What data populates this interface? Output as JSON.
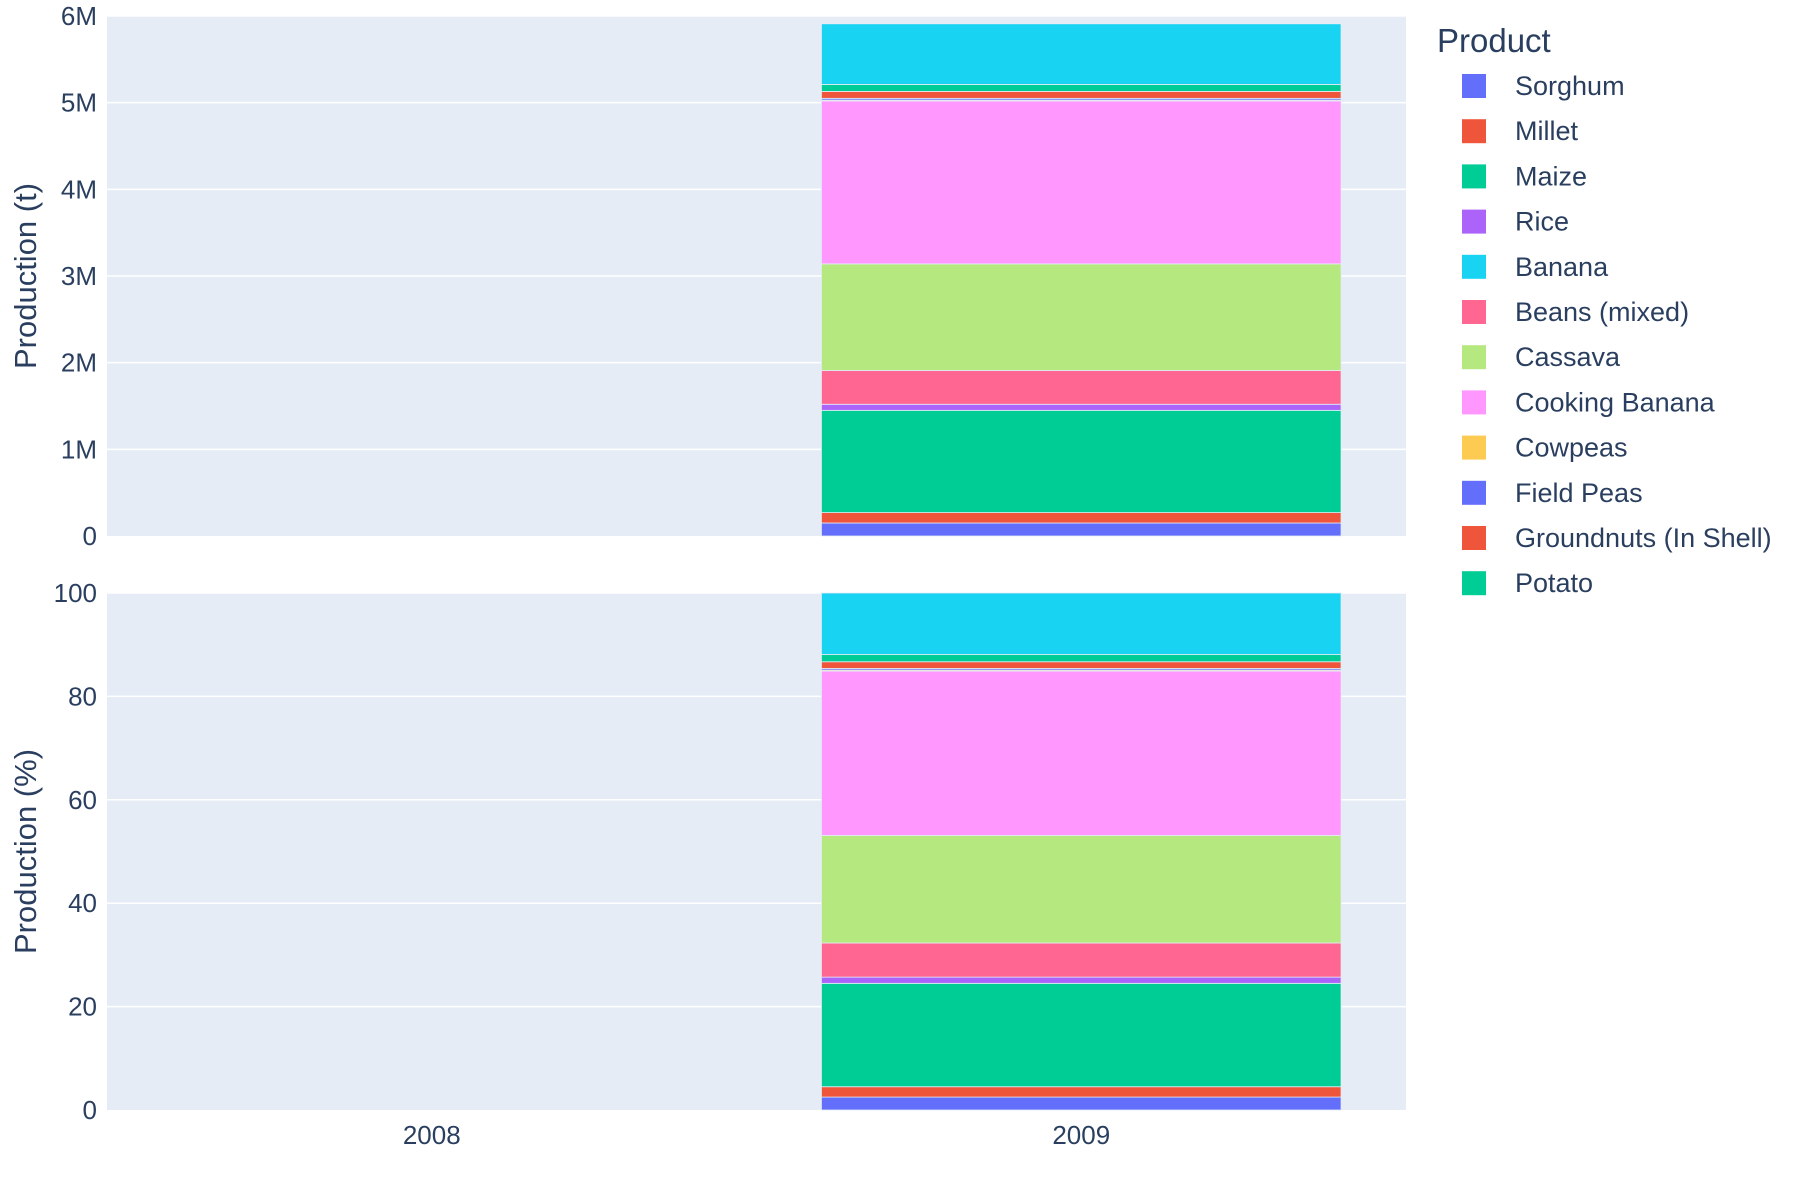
{
  "chart_data": [
    {
      "type": "bar",
      "stacked": true,
      "panel": "top",
      "ylabel": "Production (t)",
      "ylim": [
        0,
        6000000
      ],
      "yticks": [
        0,
        1000000,
        2000000,
        3000000,
        4000000,
        5000000,
        6000000
      ],
      "ytick_labels": [
        "0",
        "1M",
        "2M",
        "3M",
        "4M",
        "5M",
        "6M"
      ],
      "categories": [
        "2008",
        "2009"
      ],
      "grid": true,
      "series": [
        {
          "name": "Sorghum",
          "color": "#636efa",
          "values": [
            0,
            150000
          ]
        },
        {
          "name": "Millet",
          "color": "#EF553B",
          "values": [
            0,
            120000
          ]
        },
        {
          "name": "Maize",
          "color": "#00cc96",
          "values": [
            0,
            1180000
          ]
        },
        {
          "name": "Rice",
          "color": "#ab63fa",
          "values": [
            0,
            70000
          ]
        },
        {
          "name": "Banana",
          "color": "#19d3f3",
          "values": [
            0,
            0
          ]
        },
        {
          "name": "Beans (mixed)",
          "color": "#FF6692",
          "values": [
            0,
            390000
          ]
        },
        {
          "name": "Cassava",
          "color": "#B6E880",
          "values": [
            0,
            1230000
          ]
        },
        {
          "name": "Cooking Banana",
          "color": "#FF97FF",
          "values": [
            0,
            1880000
          ]
        },
        {
          "name": "Cowpeas",
          "color": "#FECB52",
          "values": [
            0,
            10000
          ]
        },
        {
          "name": "Field Peas",
          "color": "#636efa",
          "values": [
            0,
            20000
          ]
        },
        {
          "name": "Groundnuts (In Shell)",
          "color": "#EF553B",
          "values": [
            0,
            80000
          ]
        },
        {
          "name": "Potato",
          "color": "#00cc96",
          "values": [
            0,
            80000
          ]
        },
        {
          "name": "",
          "color": "#19d3f3",
          "values": [
            0,
            700000
          ]
        }
      ]
    },
    {
      "type": "bar",
      "stacked": true,
      "panel": "bottom",
      "ylabel": "Production (%)",
      "ylim": [
        0,
        100
      ],
      "yticks": [
        0,
        20,
        40,
        60,
        80,
        100
      ],
      "ytick_labels": [
        "0",
        "20",
        "40",
        "60",
        "80",
        "100"
      ],
      "categories": [
        "2008",
        "2009"
      ],
      "grid": true,
      "series": [
        {
          "name": "Sorghum",
          "color": "#636efa",
          "values": [
            0,
            2.5
          ]
        },
        {
          "name": "Millet",
          "color": "#EF553B",
          "values": [
            0,
            2.0
          ]
        },
        {
          "name": "Maize",
          "color": "#00cc96",
          "values": [
            0,
            20.0
          ]
        },
        {
          "name": "Rice",
          "color": "#ab63fa",
          "values": [
            0,
            1.2
          ]
        },
        {
          "name": "Banana",
          "color": "#19d3f3",
          "values": [
            0,
            0
          ]
        },
        {
          "name": "Beans (mixed)",
          "color": "#FF6692",
          "values": [
            0,
            6.6
          ]
        },
        {
          "name": "Cassava",
          "color": "#B6E880",
          "values": [
            0,
            20.8
          ]
        },
        {
          "name": "Cooking Banana",
          "color": "#FF97FF",
          "values": [
            0,
            31.8
          ]
        },
        {
          "name": "Cowpeas",
          "color": "#FECB52",
          "values": [
            0,
            0.2
          ]
        },
        {
          "name": "Field Peas",
          "color": "#636efa",
          "values": [
            0,
            0.3
          ]
        },
        {
          "name": "Groundnuts (In Shell)",
          "color": "#EF553B",
          "values": [
            0,
            1.3
          ]
        },
        {
          "name": "Potato",
          "color": "#00cc96",
          "values": [
            0,
            1.4
          ]
        },
        {
          "name": "",
          "color": "#19d3f3",
          "values": [
            0,
            11.9
          ]
        }
      ]
    }
  ],
  "legend": {
    "title": "Product",
    "placement": "right",
    "items": [
      {
        "label": "Sorghum",
        "color": "#636efa"
      },
      {
        "label": "Millet",
        "color": "#EF553B"
      },
      {
        "label": "Maize",
        "color": "#00cc96"
      },
      {
        "label": "Rice",
        "color": "#ab63fa"
      },
      {
        "label": "Banana",
        "color": "#19d3f3"
      },
      {
        "label": "Beans (mixed)",
        "color": "#FF6692"
      },
      {
        "label": "Cassava",
        "color": "#B6E880"
      },
      {
        "label": "Cooking Banana",
        "color": "#FF97FF"
      },
      {
        "label": "Cowpeas",
        "color": "#FECB52"
      },
      {
        "label": "Field Peas",
        "color": "#636efa"
      },
      {
        "label": "Groundnuts (In Shell)",
        "color": "#EF553B"
      },
      {
        "label": "Potato",
        "color": "#00cc96"
      }
    ]
  },
  "colors": {
    "plot_background": "#e5ecf6",
    "grid": "#ffffff",
    "text": "#2a3f5f"
  }
}
